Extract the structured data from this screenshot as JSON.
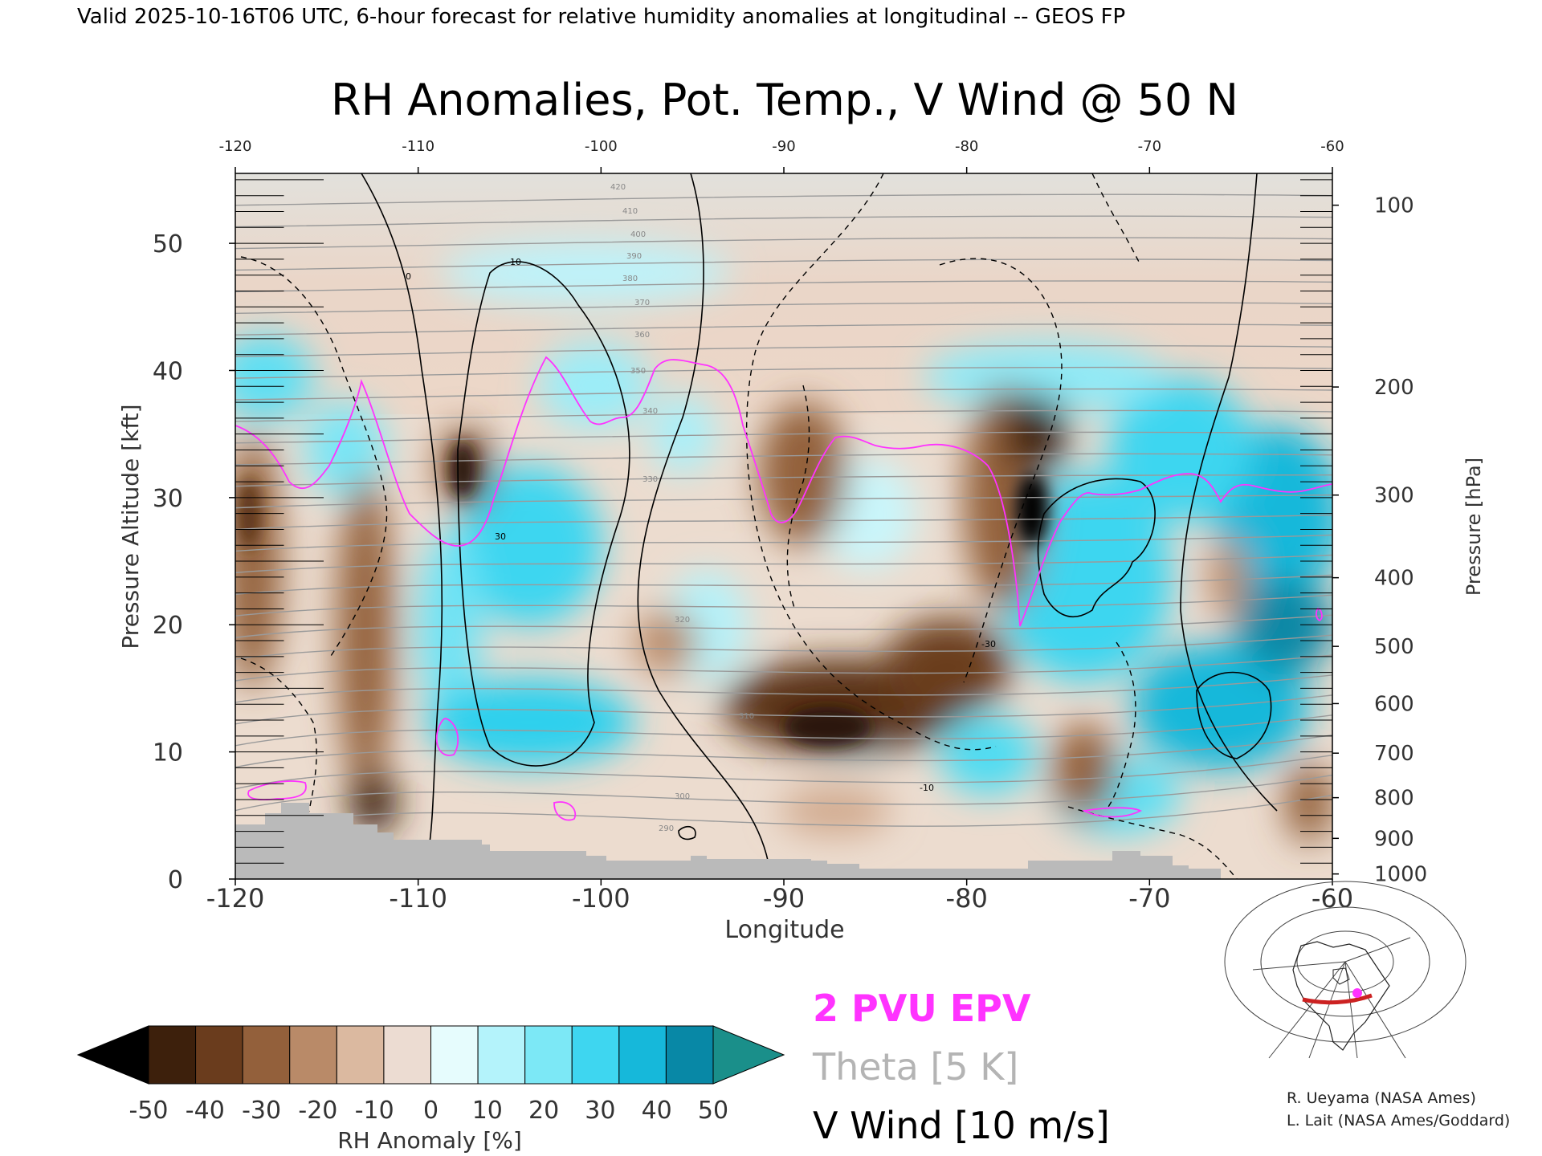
{
  "header": {
    "valid_line": "Valid 2025-10-16T06 UTC, 6-hour forecast for relative humidity anomalies at longitudinal -- GEOS FP"
  },
  "chart_data": {
    "type": "heatmap",
    "title": "RH Anomalies, Pot. Temp., V Wind @ 50 N",
    "xlabel": "Longitude",
    "ylabel_left": "Pressure Altitude [kft]",
    "ylabel_right": "Pressure [hPa]",
    "xlim": [
      -120,
      -60
    ],
    "ylim": [
      0,
      55.5
    ],
    "x_ticks_bottom": [
      "-120",
      "-110",
      "-100",
      "-90",
      "-80",
      "-70",
      "-60"
    ],
    "x_ticks_top": [
      "-120",
      "-110",
      "-100",
      "-90",
      "-80",
      "-70",
      "-60"
    ],
    "y_ticks_left": [
      "0",
      "10",
      "20",
      "30",
      "40",
      "50"
    ],
    "y_ticks_right": [
      {
        "label": "100",
        "kft": 53.0
      },
      {
        "label": "200",
        "kft": 38.7
      },
      {
        "label": "300",
        "kft": 30.2
      },
      {
        "label": "400",
        "kft": 23.7
      },
      {
        "label": "500",
        "kft": 18.3
      },
      {
        "label": "600",
        "kft": 13.8
      },
      {
        "label": "700",
        "kft": 9.9
      },
      {
        "label": "800",
        "kft": 6.4
      },
      {
        "label": "900",
        "kft": 3.2
      },
      {
        "label": "1000",
        "kft": 0.4
      }
    ],
    "colorbar": {
      "label": "RH Anomaly [%]",
      "ticks": [
        "-50",
        "-40",
        "-30",
        "-20",
        "-10",
        "0",
        "10",
        "20",
        "30",
        "40",
        "50"
      ],
      "colors": [
        "#000000",
        "#3d200c",
        "#6a3c1d",
        "#93603b",
        "#b98a68",
        "#dbb9a0",
        "#ecdcd2",
        "#e6fcfd",
        "#b4f3fb",
        "#7ce8f6",
        "#3ed6f0",
        "#16b8da",
        "#0888a6",
        "#1a8f8a"
      ]
    },
    "legend": [
      {
        "text": "2 PVU EPV",
        "color": "#ff33ff"
      },
      {
        "text": "Theta [5 K]",
        "color": "#b4b4b4"
      },
      {
        "text": "V Wind [10 m/s]",
        "color": "#000000"
      }
    ],
    "theta_labels": [
      "420",
      "410",
      "400",
      "390",
      "380",
      "370",
      "360",
      "350",
      "340",
      "330",
      "320",
      "310",
      "300",
      "290"
    ],
    "wind_labels": [
      "0",
      "10",
      "-10",
      "30",
      "-30"
    ],
    "anomaly_features": [
      {
        "lon": -108,
        "kft": 31.5,
        "value": -40
      },
      {
        "lon": -87,
        "kft": 14.0,
        "value": -45
      },
      {
        "lon": -76.5,
        "kft": 29.5,
        "value": -50
      },
      {
        "lon": -118,
        "kft": 25.0,
        "value": -40
      },
      {
        "lon": -104,
        "kft": 27.0,
        "value": 40
      },
      {
        "lon": -62.5,
        "kft": 24.0,
        "value": 45
      },
      {
        "lon": -66,
        "kft": 13.0,
        "value": 45
      },
      {
        "lon": -104,
        "kft": 11.0,
        "value": 40
      }
    ],
    "grid": false
  },
  "credits": {
    "line1": "R. Ueyama (NASA Ames)",
    "line2": "L. Lait (NASA Ames/Goddard)"
  },
  "locator_map": {
    "icon": "globe-locator-map",
    "section_color": "#cc2222",
    "marker_color": "#ff33ff"
  }
}
